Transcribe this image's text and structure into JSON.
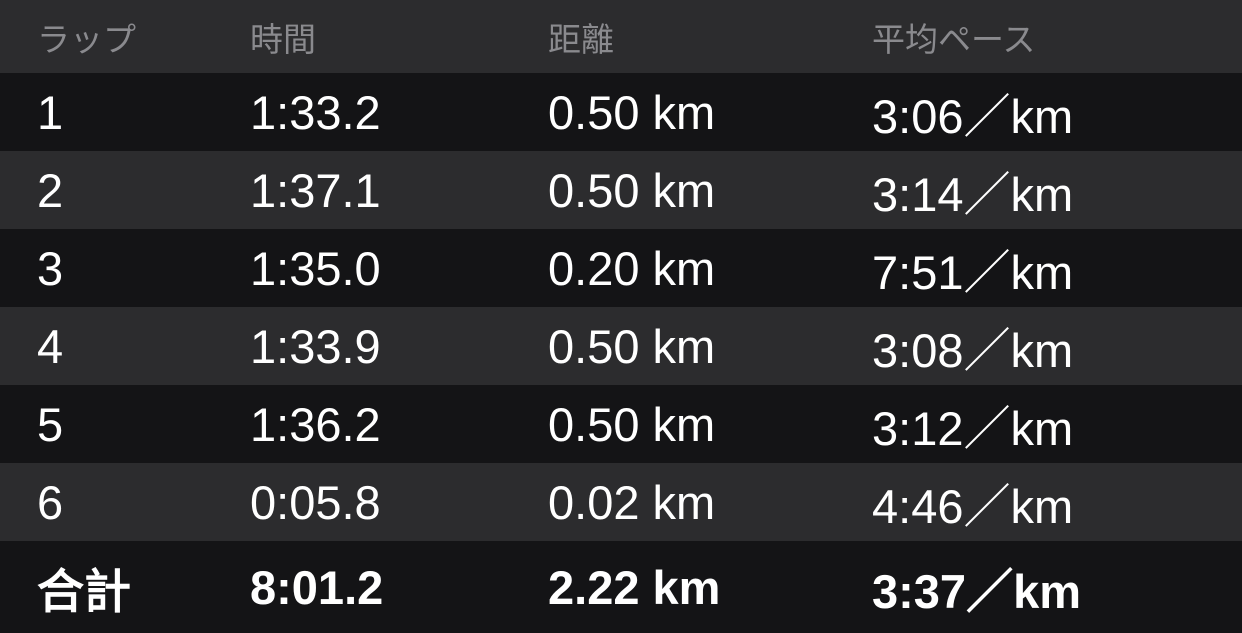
{
  "table": {
    "headers": {
      "lap": "ラップ",
      "time": "時間",
      "distance": "距離",
      "pace": "平均ペース"
    },
    "rows": [
      {
        "lap": "1",
        "time": "1:33.2",
        "distance": "0.50 km",
        "pace": "3:06／km"
      },
      {
        "lap": "2",
        "time": "1:37.1",
        "distance": "0.50 km",
        "pace": "3:14／km"
      },
      {
        "lap": "3",
        "time": "1:35.0",
        "distance": "0.20 km",
        "pace": "7:51／km"
      },
      {
        "lap": "4",
        "time": "1:33.9",
        "distance": "0.50 km",
        "pace": "3:08／km"
      },
      {
        "lap": "5",
        "time": "1:36.2",
        "distance": "0.50 km",
        "pace": "3:12／km"
      },
      {
        "lap": "6",
        "time": "0:05.8",
        "distance": "0.02 km",
        "pace": "4:46／km"
      }
    ],
    "total": {
      "label": "合計",
      "time": "8:01.2",
      "distance": "2.22 km",
      "pace": "3:37／km"
    }
  },
  "colors": {
    "row_dark": "#141416",
    "row_light": "#2C2C2E",
    "header_background": "#2C2C2E",
    "header_text": "#8A8A8E",
    "body_text": "#FFFFFF"
  }
}
